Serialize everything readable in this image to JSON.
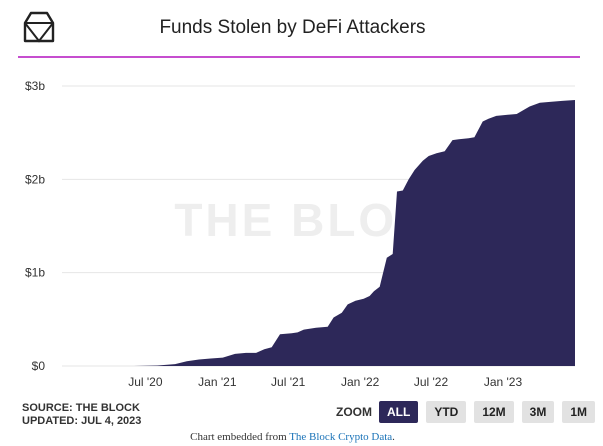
{
  "header": {
    "title": "Funds Stolen by DeFi Attackers"
  },
  "colors": {
    "series": "#2d2859",
    "title_rule": "#c64dcf",
    "active_button": "#2d2859"
  },
  "watermark": "THE BLOCK",
  "source": {
    "line1": "SOURCE: THE BLOCK",
    "line2": "UPDATED: JUL 4, 2023"
  },
  "zoom": {
    "label": "ZOOM",
    "buttons": [
      "ALL",
      "YTD",
      "12M",
      "3M",
      "1M"
    ],
    "active": "ALL"
  },
  "footer": {
    "prefix": "Chart embedded from ",
    "link": "The Block Crypto Data",
    "suffix": "."
  },
  "chart_data": {
    "type": "area",
    "title": "Funds Stolen by DeFi Attackers",
    "ylabel": "",
    "xlabel": "",
    "ylim": [
      0,
      3.0
    ],
    "y_unit": "billion USD",
    "y_ticks": [
      0,
      1,
      2,
      3
    ],
    "y_tick_labels": [
      "$0",
      "$1b",
      "$2b",
      "$3b"
    ],
    "xlim": [
      "2019-12-01",
      "2023-07-04"
    ],
    "x_ticks": [
      "2020-07-01",
      "2021-01-01",
      "2021-07-01",
      "2022-01-01",
      "2022-07-01",
      "2023-01-01"
    ],
    "x_tick_labels": [
      "Jul '20",
      "Jan '21",
      "Jul '21",
      "Jan '22",
      "Jul '22",
      "Jan '23"
    ],
    "grid": true,
    "legend": "none",
    "series": [
      {
        "x": [
          "2019-12-01",
          "2020-02-01",
          "2020-04-01",
          "2020-06-01",
          "2020-08-01",
          "2020-09-15",
          "2020-10-15",
          "2020-11-15",
          "2020-12-15",
          "2021-01-15",
          "2021-02-15",
          "2021-03-15",
          "2021-04-10",
          "2021-05-01",
          "2021-05-20",
          "2021-06-10",
          "2021-07-10",
          "2021-07-25",
          "2021-08-10",
          "2021-09-10",
          "2021-10-10",
          "2021-10-25",
          "2021-11-15",
          "2021-11-30",
          "2021-12-20",
          "2022-01-10",
          "2022-01-25",
          "2022-02-05",
          "2022-02-20",
          "2022-03-10",
          "2022-03-25",
          "2022-04-05",
          "2022-04-20",
          "2022-05-05",
          "2022-05-20",
          "2022-06-10",
          "2022-06-25",
          "2022-07-15",
          "2022-08-05",
          "2022-08-25",
          "2022-09-10",
          "2022-10-05",
          "2022-10-20",
          "2022-11-10",
          "2022-11-25",
          "2022-12-15",
          "2023-01-10",
          "2023-02-05",
          "2023-03-10",
          "2023-04-05",
          "2023-05-01",
          "2023-06-01",
          "2023-07-04"
        ],
        "values": [
          0.0,
          0.0,
          0.0,
          0.0,
          0.005,
          0.02,
          0.05,
          0.07,
          0.08,
          0.09,
          0.13,
          0.14,
          0.14,
          0.18,
          0.2,
          0.34,
          0.35,
          0.36,
          0.39,
          0.41,
          0.42,
          0.52,
          0.57,
          0.66,
          0.7,
          0.72,
          0.75,
          0.8,
          0.85,
          1.16,
          1.2,
          1.87,
          1.88,
          2.0,
          2.1,
          2.2,
          2.25,
          2.28,
          2.3,
          2.42,
          2.43,
          2.44,
          2.45,
          2.62,
          2.65,
          2.68,
          2.69,
          2.7,
          2.78,
          2.82,
          2.83,
          2.84,
          2.85
        ]
      }
    ]
  }
}
